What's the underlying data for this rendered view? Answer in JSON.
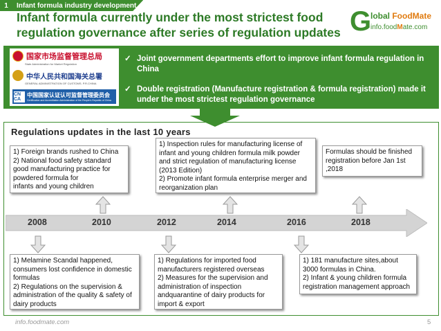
{
  "tag": {
    "number": "1",
    "label": "Infant formula industry  development"
  },
  "title": "Infant formula currently under the most strictest food regulation governance after series of regulation updates",
  "logo": {
    "letter": "G",
    "line1_a": "lobal ",
    "line1_b": "FoodMate",
    "line2_a": "info.food",
    "line2_b": "M",
    "line2_c": "ate.com"
  },
  "gov": {
    "line1": "国家市场监督管理总局",
    "line1_en": "State Administration for Market Regulation",
    "line2": "中华人民共和国海关总署",
    "line2_en": "GENERAL ADMINISTRATION OF CUSTOMS. P.R.CHINA",
    "line3_icon": "CN CA",
    "line3": "中国国家认证认可监督管理委员会",
    "line3_en": "Certification and Accreditation Administration of the People's Republic of China"
  },
  "bullets": [
    "Joint government departments effort to improve infant formula regulation in China",
    "Double registration (Manufacture registration & formula registration) made it under the most strictest regulation governance"
  ],
  "panel_title": "Regulations updates in the last 10 years",
  "years": [
    "2008",
    "2010",
    "2012",
    "2014",
    "2016",
    "2018"
  ],
  "top_boxes": {
    "2010": "1) Foreign brands rushed to China\n2) National food safety standard good manufacturing practice for powdered formula for\n infants and young children",
    "2014": "1) Inspection rules for manufacturing license of infant and young children formula milk powder and strict regulation of manufacturing license (2013 Edition)\n2) Promote infant formula enterprise merger and reorganization plan",
    "2018": "Formulas should be finished registration before Jan 1st ,2018"
  },
  "bottom_boxes": {
    "2008": "1) Melamine Scandal happened, consumers lost confidence in domestic formulas\n2) Regulations on the supervision & administration of the quality & safety of dairy products",
    "2012": "1) Regulations for imported food manufacturers registered overseas\n2) Measures for the supervision and administration of inspection andquarantine of dairy products for import & export",
    "2016": "1) 181 manufacture sites,about 3000 formulas in China.\n2) Infant & young children formula registration management approach"
  },
  "footer": "info.foodmate.com",
  "page_number": "5",
  "colors": {
    "green": "#3e8e2f",
    "title_green": "#2d7a26",
    "orange": "#e07b10",
    "arrow_gray": "#d0d0d0"
  },
  "icons": [
    "check-icon",
    "down-arrow-icon",
    "up-arrow-icon",
    "timeline-arrow-icon"
  ]
}
